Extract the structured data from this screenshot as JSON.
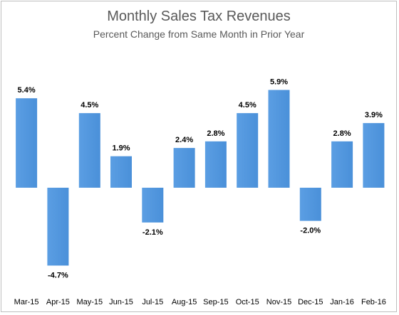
{
  "chart_data": {
    "type": "bar",
    "title": "Monthly Sales Tax Revenues",
    "subtitle": "Percent Change from Same Month in Prior Year",
    "categories": [
      "Mar-15",
      "Apr-15",
      "May-15",
      "Jun-15",
      "Jul-15",
      "Aug-15",
      "Sep-15",
      "Oct-15",
      "Nov-15",
      "Dec-15",
      "Jan-16",
      "Feb-16"
    ],
    "values": [
      5.4,
      -4.7,
      4.5,
      1.9,
      -2.1,
      2.4,
      2.8,
      4.5,
      5.9,
      -2.0,
      2.8,
      3.9
    ],
    "value_labels": [
      "5.4%",
      "-4.7%",
      "4.5%",
      "1.9%",
      "-2.1%",
      "2.4%",
      "2.8%",
      "4.5%",
      "5.9%",
      "-2.0%",
      "2.8%",
      "3.9%"
    ],
    "xlabel": "",
    "ylabel": "",
    "ylim": [
      -4.7,
      5.9
    ],
    "grid": false,
    "legend": "none",
    "colors": {
      "bar": "#4a90d9",
      "bar_top": "#5b9ee3",
      "text": "#000000",
      "title": "#595959"
    }
  }
}
